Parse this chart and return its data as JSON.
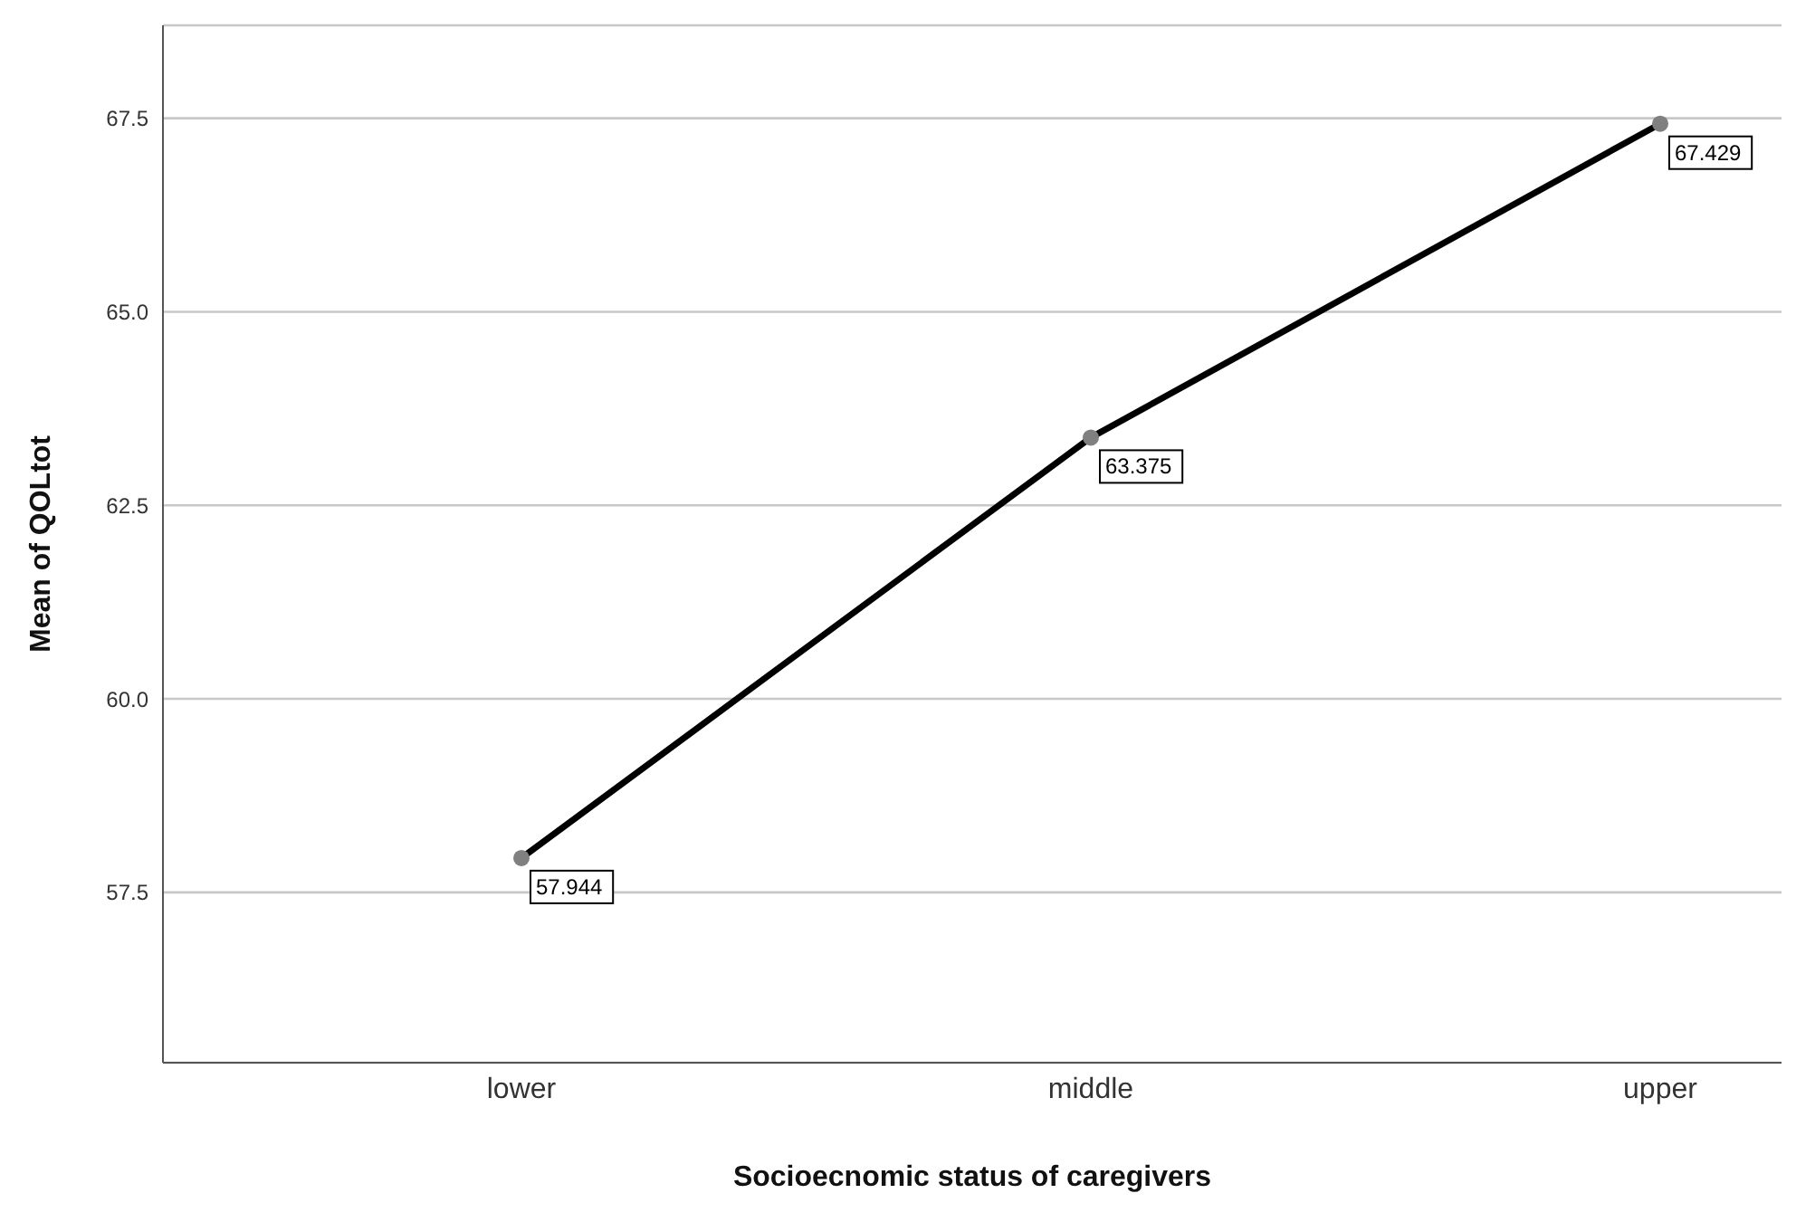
{
  "chart_data": {
    "type": "line",
    "xlabel": "Socioecnomic status of caregivers",
    "ylabel": "Mean of QOLtot",
    "categories": [
      "lower",
      "middle",
      "upper"
    ],
    "series": [
      {
        "color": "#000000",
        "values": [
          57.944,
          63.375,
          67.429
        ]
      }
    ],
    "ylim": [
      55.3,
      68.7
    ],
    "yticks": [
      57.5,
      {
        "value": 60,
        "label": "60.0"
      },
      62.5,
      {
        "value": 65,
        "label": "65.0"
      },
      67.5
    ],
    "grid": "y",
    "marker": "circle",
    "data_labels": true
  }
}
